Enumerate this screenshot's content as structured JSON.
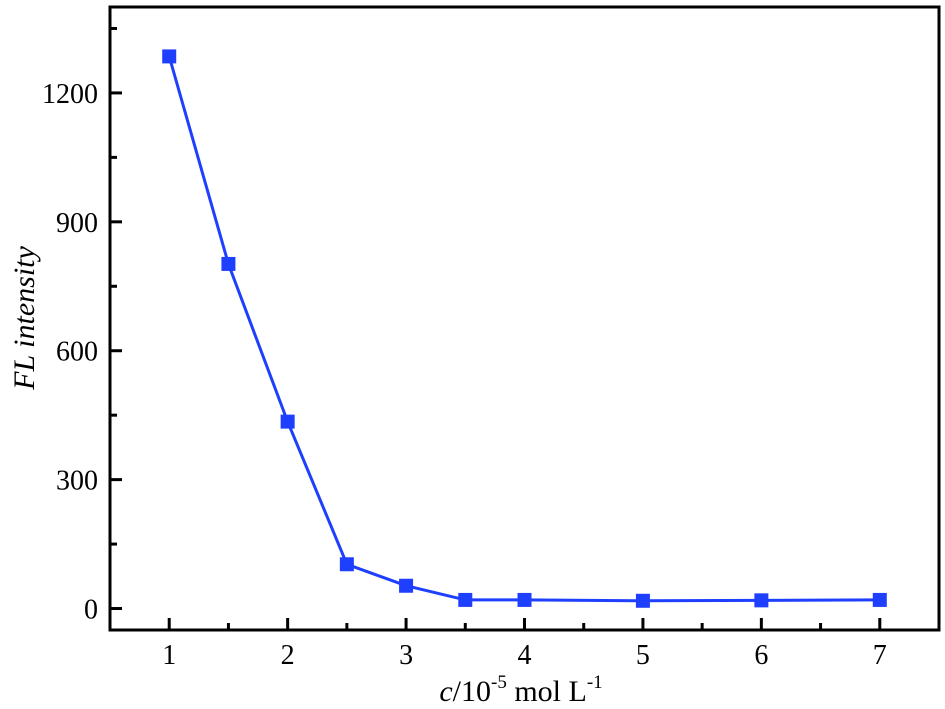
{
  "chart_data": {
    "type": "line",
    "x": [
      1,
      1.5,
      2,
      2.5,
      3,
      3.5,
      4,
      5,
      6,
      7
    ],
    "series": [
      {
        "values": [
          1285,
          802,
          435,
          103,
          53,
          20,
          20,
          18,
          19,
          20
        ],
        "color": "#1f3fff",
        "marker": "square"
      }
    ],
    "xlim": [
      0.5,
      7.5
    ],
    "ylim": [
      -50,
      1400
    ],
    "x_ticks": [
      1,
      2,
      3,
      4,
      5,
      6,
      7
    ],
    "y_ticks": [
      0,
      300,
      600,
      900,
      1200
    ],
    "x_tick_labels": [
      "1",
      "2",
      "3",
      "4",
      "5",
      "6",
      "7"
    ],
    "y_tick_labels": [
      "0",
      "300",
      "600",
      "900",
      "1200"
    ],
    "xlabel": {
      "italic_part": "c",
      "base": "/10",
      "exp": "-5",
      "unit": " mol L",
      "unit_exp": "-1"
    },
    "ylabel": "FL intensity",
    "grid": false,
    "legend": "none"
  }
}
